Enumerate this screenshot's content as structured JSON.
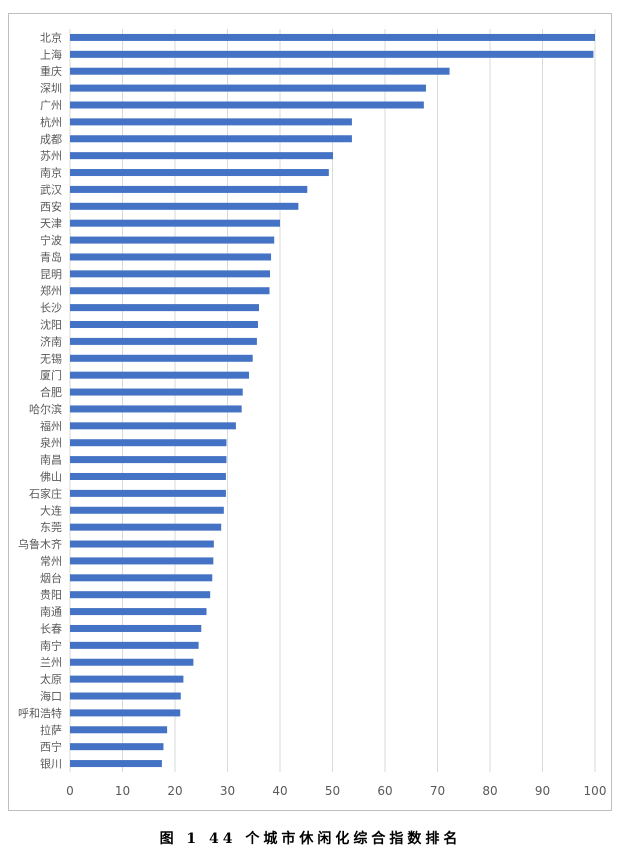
{
  "caption": "图 1    44 个城市休闲化综合指数排名",
  "colors": {
    "bar": "#4472C4",
    "grid": "#d9d9d9",
    "text": "#595959"
  },
  "chart_data": {
    "type": "bar",
    "orientation": "horizontal",
    "categories": [
      "北京",
      "上海",
      "重庆",
      "深圳",
      "广州",
      "杭州",
      "成都",
      "苏州",
      "南京",
      "武汉",
      "西安",
      "天津",
      "宁波",
      "青岛",
      "昆明",
      "郑州",
      "长沙",
      "沈阳",
      "济南",
      "无锡",
      "厦门",
      "合肥",
      "哈尔滨",
      "福州",
      "泉州",
      "南昌",
      "佛山",
      "石家庄",
      "大连",
      "东莞",
      "乌鲁木齐",
      "常州",
      "烟台",
      "贵阳",
      "南通",
      "长春",
      "南宁",
      "兰州",
      "太原",
      "海口",
      "呼和浩特",
      "拉萨",
      "西宁",
      "银川"
    ],
    "values": [
      100,
      99.7,
      72.3,
      67.8,
      67.4,
      53.7,
      53.7,
      50.1,
      49.3,
      45.2,
      43.5,
      40.0,
      38.9,
      38.3,
      38.1,
      38.0,
      36.0,
      35.8,
      35.6,
      34.8,
      34.1,
      32.9,
      32.7,
      31.6,
      29.8,
      29.8,
      29.7,
      29.7,
      29.3,
      28.8,
      27.4,
      27.3,
      27.1,
      26.7,
      26.0,
      25.0,
      24.5,
      23.5,
      21.6,
      21.1,
      21.0,
      18.5,
      17.8,
      17.5
    ],
    "xlim": [
      0,
      100
    ],
    "xticks": [
      "0",
      "10",
      "20",
      "30",
      "40",
      "50",
      "60",
      "70",
      "80",
      "90",
      "100"
    ],
    "grid": true,
    "title": "",
    "xlabel": "",
    "ylabel": ""
  }
}
